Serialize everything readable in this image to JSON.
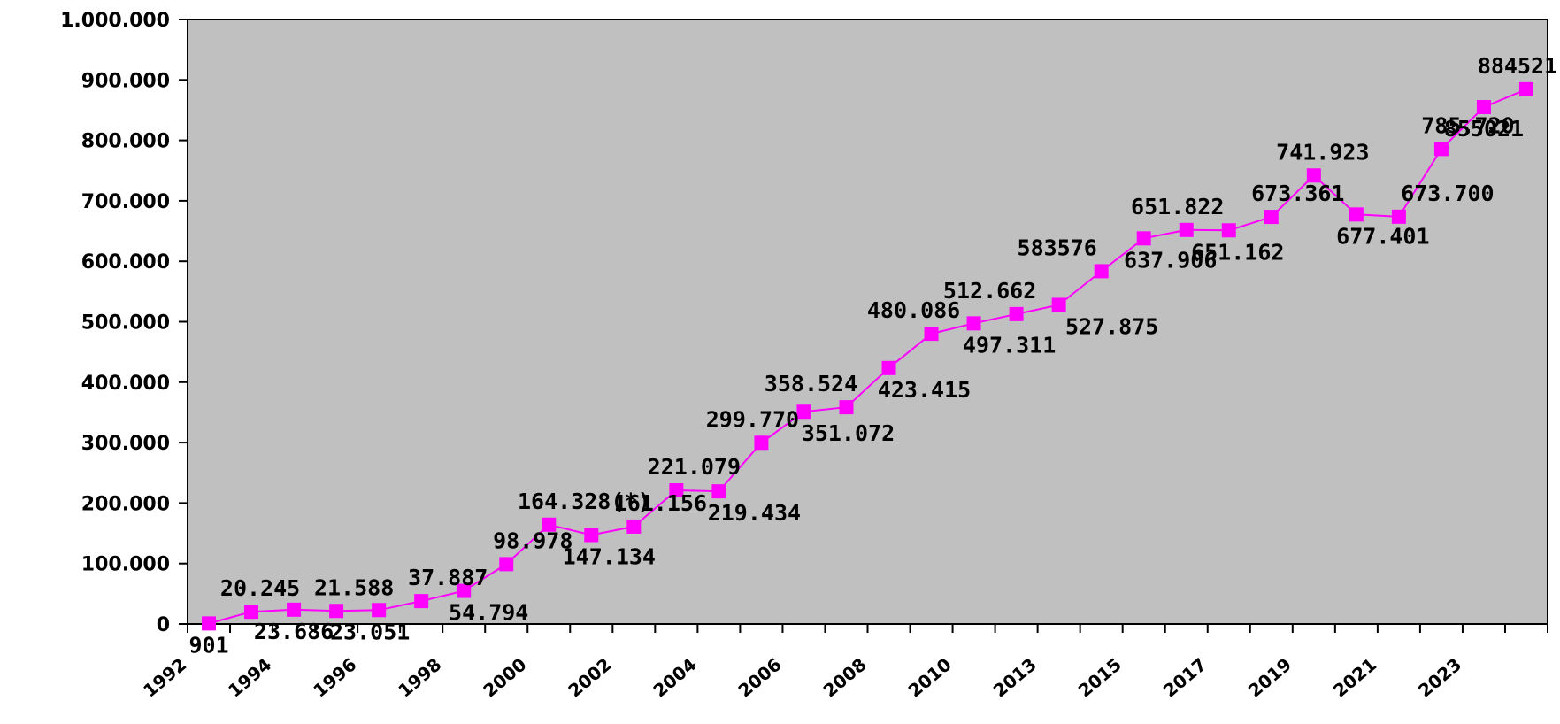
{
  "chart_data": {
    "type": "line",
    "title": "",
    "xlabel": "",
    "ylabel": "",
    "ylim": [
      0,
      1000000
    ],
    "grid": false,
    "plot_background": "#c0c0c0",
    "series_color": "#ff00ff",
    "y_ticks": [
      "0",
      "100.000",
      "200.000",
      "300.000",
      "400.000",
      "500.000",
      "600.000",
      "700.000",
      "800.000",
      "900.000",
      "1.000.000"
    ],
    "x_tick_labels": [
      "1992",
      "1994",
      "1996",
      "1998",
      "2000",
      "2002",
      "2004",
      "2006",
      "2008",
      "2010",
      "2013",
      "2015",
      "2017",
      "2019",
      "2021",
      "2023"
    ],
    "series": [
      {
        "values": [
          901,
          20245,
          23686,
          21588,
          23051,
          37887,
          54794,
          98978,
          164328,
          147134,
          161156,
          221079,
          219434,
          299770,
          351072,
          358524,
          423415,
          480086,
          497311,
          512662,
          527875,
          583576,
          637906,
          651822,
          651162,
          673361,
          741923,
          677401,
          673700,
          785720,
          855021,
          884521
        ],
        "labels": [
          "901",
          "20.245",
          "23.686",
          "21.588",
          "23.051",
          "37.887",
          "54.794",
          "98.978",
          "164.328(*)",
          "147.134",
          "161.156",
          "221.079",
          "219.434",
          "299.770",
          "351.072",
          "358.524",
          "423.415",
          "480.086",
          "497.311",
          "512.662",
          "527.875",
          "583576",
          "637.906",
          "651.822",
          "651.162",
          "673.361",
          "741.923",
          "677.401",
          "673.700",
          "785.720",
          "855021",
          "884521"
        ]
      }
    ]
  }
}
